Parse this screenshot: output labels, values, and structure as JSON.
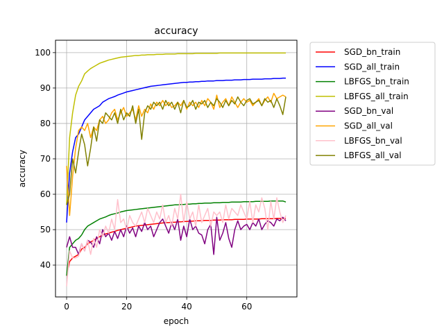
{
  "chart_data": {
    "type": "line",
    "title": "accuracy",
    "xlabel": "epoch",
    "ylabel": "accuracy",
    "xlim": [
      -3.7,
      76.7
    ],
    "ylim": [
      31,
      103.5
    ],
    "xticks": [
      0,
      20,
      40,
      60
    ],
    "yticks": [
      40,
      50,
      60,
      70,
      80,
      90,
      100
    ],
    "grid": true,
    "legend_position": "outside-right",
    "series": [
      {
        "name": "SGD_bn_train",
        "color": "#ff0000",
        "values": [
          37.0,
          41.0,
          42.0,
          42.5,
          43.0,
          44.5,
          45.0,
          46.0,
          46.5,
          47.0,
          47.5,
          48.0,
          48.5,
          48.8,
          49.0,
          49.3,
          49.5,
          49.8,
          50.0,
          50.2,
          50.4,
          50.6,
          50.8,
          51.0,
          51.1,
          51.2,
          51.3,
          51.4,
          51.5,
          51.6,
          51.7,
          51.8,
          51.9,
          52.0,
          52.0,
          52.1,
          52.1,
          52.2,
          52.2,
          52.3,
          52.3,
          52.4,
          52.4,
          52.5,
          52.5,
          52.5,
          52.6,
          52.6,
          52.6,
          52.7,
          52.7,
          52.7,
          52.8,
          52.8,
          52.8,
          52.8,
          52.9,
          52.9,
          52.9,
          52.9,
          53.0,
          53.0,
          53.0,
          53.0,
          53.0,
          53.1,
          53.1,
          53.1,
          53.1,
          53.1,
          53.2,
          53.2,
          53.2,
          53.2
        ]
      },
      {
        "name": "SGD_all_train",
        "color": "#0000ff",
        "values": [
          52.0,
          66.0,
          72.0,
          76.0,
          77.0,
          79.0,
          81.0,
          82.0,
          83.0,
          84.0,
          84.5,
          85.0,
          86.0,
          86.5,
          87.0,
          87.3,
          87.6,
          88.0,
          88.3,
          88.6,
          88.9,
          89.1,
          89.3,
          89.5,
          89.7,
          89.9,
          90.1,
          90.3,
          90.5,
          90.6,
          90.7,
          90.8,
          90.9,
          91.0,
          91.1,
          91.2,
          91.3,
          91.4,
          91.5,
          91.6,
          91.6,
          91.7,
          91.7,
          91.8,
          91.8,
          91.9,
          91.9,
          92.0,
          92.0,
          92.0,
          92.1,
          92.1,
          92.1,
          92.2,
          92.2,
          92.2,
          92.3,
          92.3,
          92.3,
          92.4,
          92.4,
          92.4,
          92.5,
          92.5,
          92.5,
          92.5,
          92.6,
          92.6,
          92.6,
          92.7,
          92.7,
          92.7,
          92.8,
          92.8
        ]
      },
      {
        "name": "LBFGS_bn_train",
        "color": "#008000",
        "values": [
          37.0,
          45.0,
          46.0,
          47.0,
          47.5,
          48.5,
          50.0,
          51.0,
          51.5,
          52.0,
          52.5,
          53.0,
          53.3,
          53.6,
          54.0,
          54.3,
          54.5,
          54.7,
          55.0,
          55.2,
          55.4,
          55.5,
          55.6,
          55.7,
          55.8,
          55.9,
          56.0,
          56.1,
          56.2,
          56.3,
          56.4,
          56.5,
          56.6,
          56.7,
          56.8,
          56.9,
          57.0,
          57.0,
          57.1,
          57.1,
          57.2,
          57.2,
          57.3,
          57.3,
          57.4,
          57.4,
          57.5,
          57.5,
          57.5,
          57.6,
          57.6,
          57.6,
          57.7,
          57.7,
          57.7,
          57.8,
          57.8,
          57.8,
          57.8,
          57.9,
          57.9,
          57.9,
          57.9,
          58.0,
          58.0,
          58.0,
          58.0,
          58.0,
          58.1,
          58.1,
          58.1,
          58.1,
          58.1,
          57.8
        ]
      },
      {
        "name": "LBFGS_all_train",
        "color": "#bfbf00",
        "values": [
          57.0,
          76.0,
          83.0,
          88.0,
          90.5,
          92.0,
          94.0,
          94.8,
          95.5,
          96.0,
          96.5,
          97.0,
          97.3,
          97.6,
          97.9,
          98.1,
          98.3,
          98.5,
          98.7,
          98.8,
          98.9,
          99.0,
          99.1,
          99.2,
          99.2,
          99.3,
          99.3,
          99.4,
          99.4,
          99.4,
          99.5,
          99.5,
          99.5,
          99.6,
          99.6,
          99.6,
          99.6,
          99.7,
          99.7,
          99.7,
          99.7,
          99.7,
          99.7,
          99.8,
          99.8,
          99.8,
          99.8,
          99.8,
          99.8,
          99.8,
          99.8,
          99.9,
          99.9,
          99.9,
          99.9,
          99.9,
          99.9,
          99.9,
          99.9,
          99.9,
          99.9,
          99.9,
          99.9,
          99.9,
          99.9,
          99.9,
          99.9,
          99.9,
          99.9,
          99.9,
          99.9,
          99.9,
          99.9,
          99.9
        ]
      },
      {
        "name": "SGD_bn_val",
        "color": "#800080",
        "values": [
          45.0,
          48.0,
          45.0,
          45.0,
          43.0,
          46.0,
          44.0,
          47.0,
          46.5,
          45.0,
          48.0,
          46.0,
          50.0,
          48.0,
          49.0,
          47.0,
          49.5,
          47.5,
          50.0,
          48.0,
          51.0,
          49.0,
          50.5,
          48.0,
          51.0,
          49.5,
          52.0,
          50.0,
          51.0,
          48.0,
          50.0,
          52.0,
          53.0,
          51.0,
          49.0,
          52.0,
          50.0,
          53.0,
          47.0,
          51.0,
          48.0,
          53.0,
          50.0,
          51.0,
          49.0,
          48.5,
          46.0,
          50.0,
          51.5,
          43.0,
          53.5,
          47.0,
          49.0,
          52.0,
          47.5,
          45.0,
          50.0,
          52.5,
          50.0,
          51.0,
          51.5,
          50.0,
          52.0,
          51.0,
          53.0,
          50.0,
          51.5,
          52.5,
          52.0,
          51.0,
          53.0,
          52.5,
          53.5,
          52.5
        ]
      },
      {
        "name": "SGD_all_val",
        "color": "#ffa500",
        "values": [
          68.0,
          54.0,
          65.0,
          73.0,
          78.0,
          79.0,
          78.0,
          80.0,
          76.0,
          79.0,
          78.0,
          81.0,
          82.0,
          80.0,
          81.0,
          83.0,
          84.0,
          81.0,
          83.0,
          84.5,
          82.0,
          83.0,
          84.0,
          81.0,
          85.0,
          82.0,
          84.0,
          83.0,
          85.5,
          84.0,
          86.0,
          85.0,
          86.5,
          85.0,
          86.0,
          84.5,
          85.0,
          86.0,
          85.0,
          86.5,
          84.0,
          86.0,
          85.0,
          86.0,
          84.5,
          86.5,
          85.0,
          87.0,
          86.0,
          84.0,
          88.0,
          84.5,
          86.0,
          87.0,
          85.0,
          87.5,
          86.0,
          84.5,
          86.0,
          87.0,
          86.0,
          86.5,
          85.0,
          86.0,
          87.0,
          85.0,
          86.5,
          87.5,
          86.0,
          88.5,
          87.0,
          87.5,
          88.0,
          87.5
        ]
      },
      {
        "name": "LBFGS_bn_val",
        "color": "#ffc0cb",
        "values": [
          34.0,
          44.0,
          42.0,
          42.0,
          42.5,
          46.0,
          44.0,
          47.0,
          43.0,
          47.5,
          45.0,
          50.0,
          48.0,
          51.0,
          49.0,
          53.0,
          50.0,
          58.5,
          52.0,
          53.0,
          50.0,
          54.0,
          52.0,
          51.0,
          53.0,
          55.0,
          52.0,
          56.0,
          54.0,
          52.0,
          55.0,
          53.0,
          57.0,
          52.0,
          54.0,
          51.0,
          56.0,
          53.0,
          60.0,
          52.0,
          58.0,
          53.0,
          55.0,
          51.0,
          57.0,
          52.0,
          54.0,
          56.0,
          51.0,
          55.0,
          54.0,
          55.0,
          52.0,
          57.0,
          53.0,
          56.0,
          55.0,
          54.0,
          57.0,
          55.0,
          53.0,
          58.0,
          52.0,
          57.0,
          55.0,
          59.0,
          56.0,
          50.0,
          58.0,
          53.0,
          59.0,
          55.0,
          52.0,
          54.0
        ]
      },
      {
        "name": "LBFGS_all_val",
        "color": "#808000",
        "values": [
          57.0,
          60.0,
          70.0,
          66.0,
          72.0,
          77.0,
          74.0,
          68.0,
          73.0,
          79.0,
          75.0,
          81.0,
          80.0,
          83.0,
          82.0,
          81.0,
          83.0,
          80.0,
          84.0,
          81.0,
          83.0,
          82.0,
          85.0,
          80.0,
          84.0,
          75.5,
          83.0,
          85.0,
          84.0,
          86.0,
          85.0,
          86.0,
          84.0,
          86.5,
          85.0,
          86.0,
          84.0,
          86.0,
          83.0,
          86.5,
          84.5,
          85.0,
          86.5,
          84.0,
          86.0,
          85.5,
          86.5,
          84.5,
          86.0,
          85.0,
          87.0,
          86.0,
          84.5,
          86.5,
          85.0,
          86.5,
          85.5,
          87.5,
          86.0,
          85.0,
          86.5,
          87.0,
          85.5,
          86.0,
          86.5,
          85.0,
          87.0,
          86.0,
          86.5,
          84.5,
          87.0,
          85.0,
          82.5,
          87.5
        ]
      }
    ]
  }
}
